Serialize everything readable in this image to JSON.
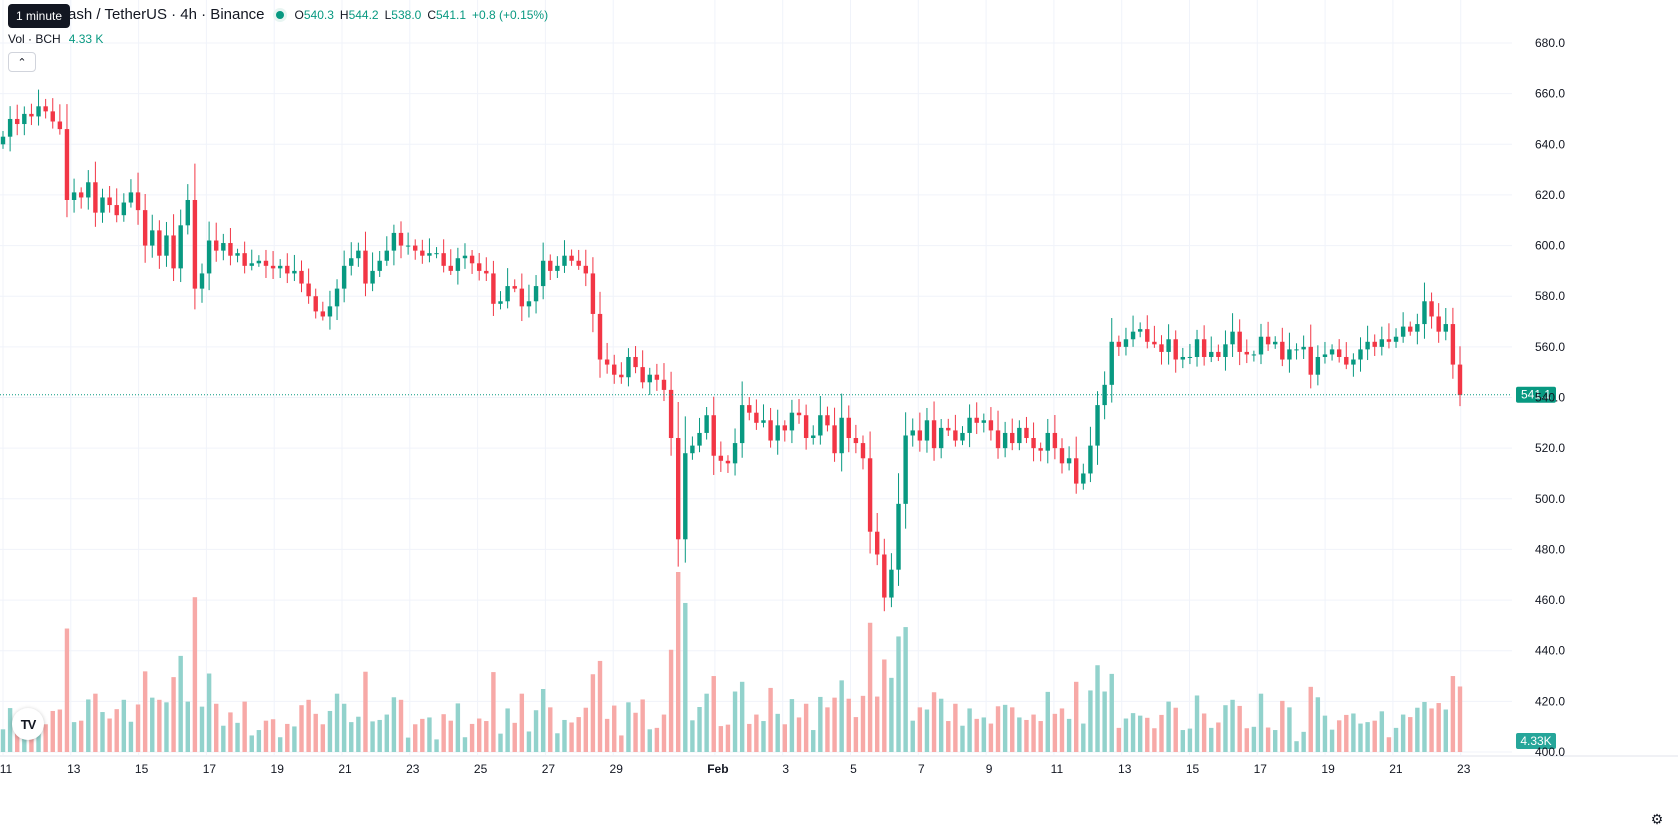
{
  "header": {
    "title": "Bitcoin Cash / TetherUS · 4h · Binance",
    "tooltip": "1 minute",
    "ohlc": {
      "o_label": "O",
      "o": "540.3",
      "h_label": "H",
      "h": "544.2",
      "l_label": "L",
      "l": "538.0",
      "c_label": "C",
      "c": "541.1",
      "change": "+0.8 (+0.15%)"
    },
    "volume": {
      "label": "Vol · BCH",
      "value": "4.33 K"
    },
    "collapse_icon": "chevron-up-icon",
    "logo": "TV",
    "settings_icon": "gear-icon"
  },
  "colors": {
    "up": "#089981",
    "down": "#f23645",
    "up_volume": "#92d2cc",
    "down_volume": "#f7a9a7",
    "grid": "#f0f3fa",
    "last_price": "#089981"
  },
  "chart_data": {
    "type": "candlestick",
    "title": "Bitcoin Cash / TetherUS · 4h · Binance",
    "y_axis": {
      "ylim": [
        400,
        680
      ],
      "ticks": [
        "680.0",
        "660.0",
        "640.0",
        "620.0",
        "600.0",
        "580.0",
        "560.0",
        "540.0",
        "520.0",
        "500.0",
        "480.0",
        "460.0",
        "440.0",
        "420.0",
        "400.0"
      ]
    },
    "x_axis": {
      "labels": [
        {
          "d": 11,
          "text": "11"
        },
        {
          "d": 13,
          "text": "13"
        },
        {
          "d": 15,
          "text": "15"
        },
        {
          "d": 17,
          "text": "17"
        },
        {
          "d": 19,
          "text": "19"
        },
        {
          "d": 21,
          "text": "21"
        },
        {
          "d": 23,
          "text": "23"
        },
        {
          "d": 25,
          "text": "25"
        },
        {
          "d": 27,
          "text": "27"
        },
        {
          "d": 29,
          "text": "29"
        },
        {
          "d": 32,
          "text": "Feb"
        },
        {
          "d": 34,
          "text": "3"
        },
        {
          "d": 36,
          "text": "5"
        },
        {
          "d": 38,
          "text": "7"
        },
        {
          "d": 40,
          "text": "9"
        },
        {
          "d": 42,
          "text": "11"
        },
        {
          "d": 44,
          "text": "13"
        },
        {
          "d": 46,
          "text": "15"
        },
        {
          "d": 48,
          "text": "17"
        },
        {
          "d": 50,
          "text": "19"
        },
        {
          "d": 52,
          "text": "21"
        },
        {
          "d": 54,
          "text": "23"
        }
      ]
    },
    "last_price": {
      "value": 541.1,
      "label": "541.1"
    },
    "last_volume_label": "4.33K",
    "volume_max": 100,
    "closes": [
      643,
      650,
      648,
      652,
      651,
      655,
      653,
      649,
      646,
      618,
      621,
      619,
      625,
      613,
      619,
      616,
      612,
      617,
      621,
      614,
      600,
      606,
      596,
      604,
      591,
      608,
      618,
      583,
      589,
      602,
      598,
      601,
      596,
      597,
      592,
      593,
      594,
      592,
      591,
      592,
      589,
      590,
      585,
      580,
      574,
      572,
      576,
      583,
      592,
      595,
      598,
      585,
      590,
      594,
      598,
      605,
      600,
      600,
      598,
      596,
      597,
      597,
      592,
      590,
      595,
      596,
      593,
      590,
      589,
      577,
      578,
      584,
      583,
      576,
      578,
      584,
      594,
      590,
      592,
      596,
      594,
      592,
      589,
      573,
      555,
      553,
      549,
      548,
      556,
      552,
      546,
      549,
      547,
      543,
      524,
      484,
      518,
      521,
      526,
      533,
      517,
      515,
      514,
      522,
      537,
      534,
      530,
      531,
      523,
      529,
      527,
      534,
      533,
      524,
      525,
      533,
      529,
      518,
      532,
      524,
      522,
      516,
      487,
      478,
      461,
      472,
      498,
      525,
      527,
      523,
      531,
      520,
      528,
      527,
      523,
      526,
      532,
      530,
      531,
      527,
      520,
      526,
      522,
      528,
      524,
      520,
      519,
      526,
      520,
      514,
      516,
      506,
      510,
      521,
      537,
      545,
      562,
      560,
      563,
      566,
      567,
      562,
      561,
      558,
      563,
      555,
      556,
      556,
      563,
      556,
      558,
      556,
      561,
      566,
      558,
      557,
      557,
      564,
      561,
      562,
      555,
      559,
      559,
      560,
      549,
      556,
      557,
      559,
      556,
      553,
      555,
      559,
      562,
      560,
      563,
      562,
      564,
      568,
      566,
      569,
      578,
      572,
      566,
      569,
      553,
      541
    ]
  }
}
